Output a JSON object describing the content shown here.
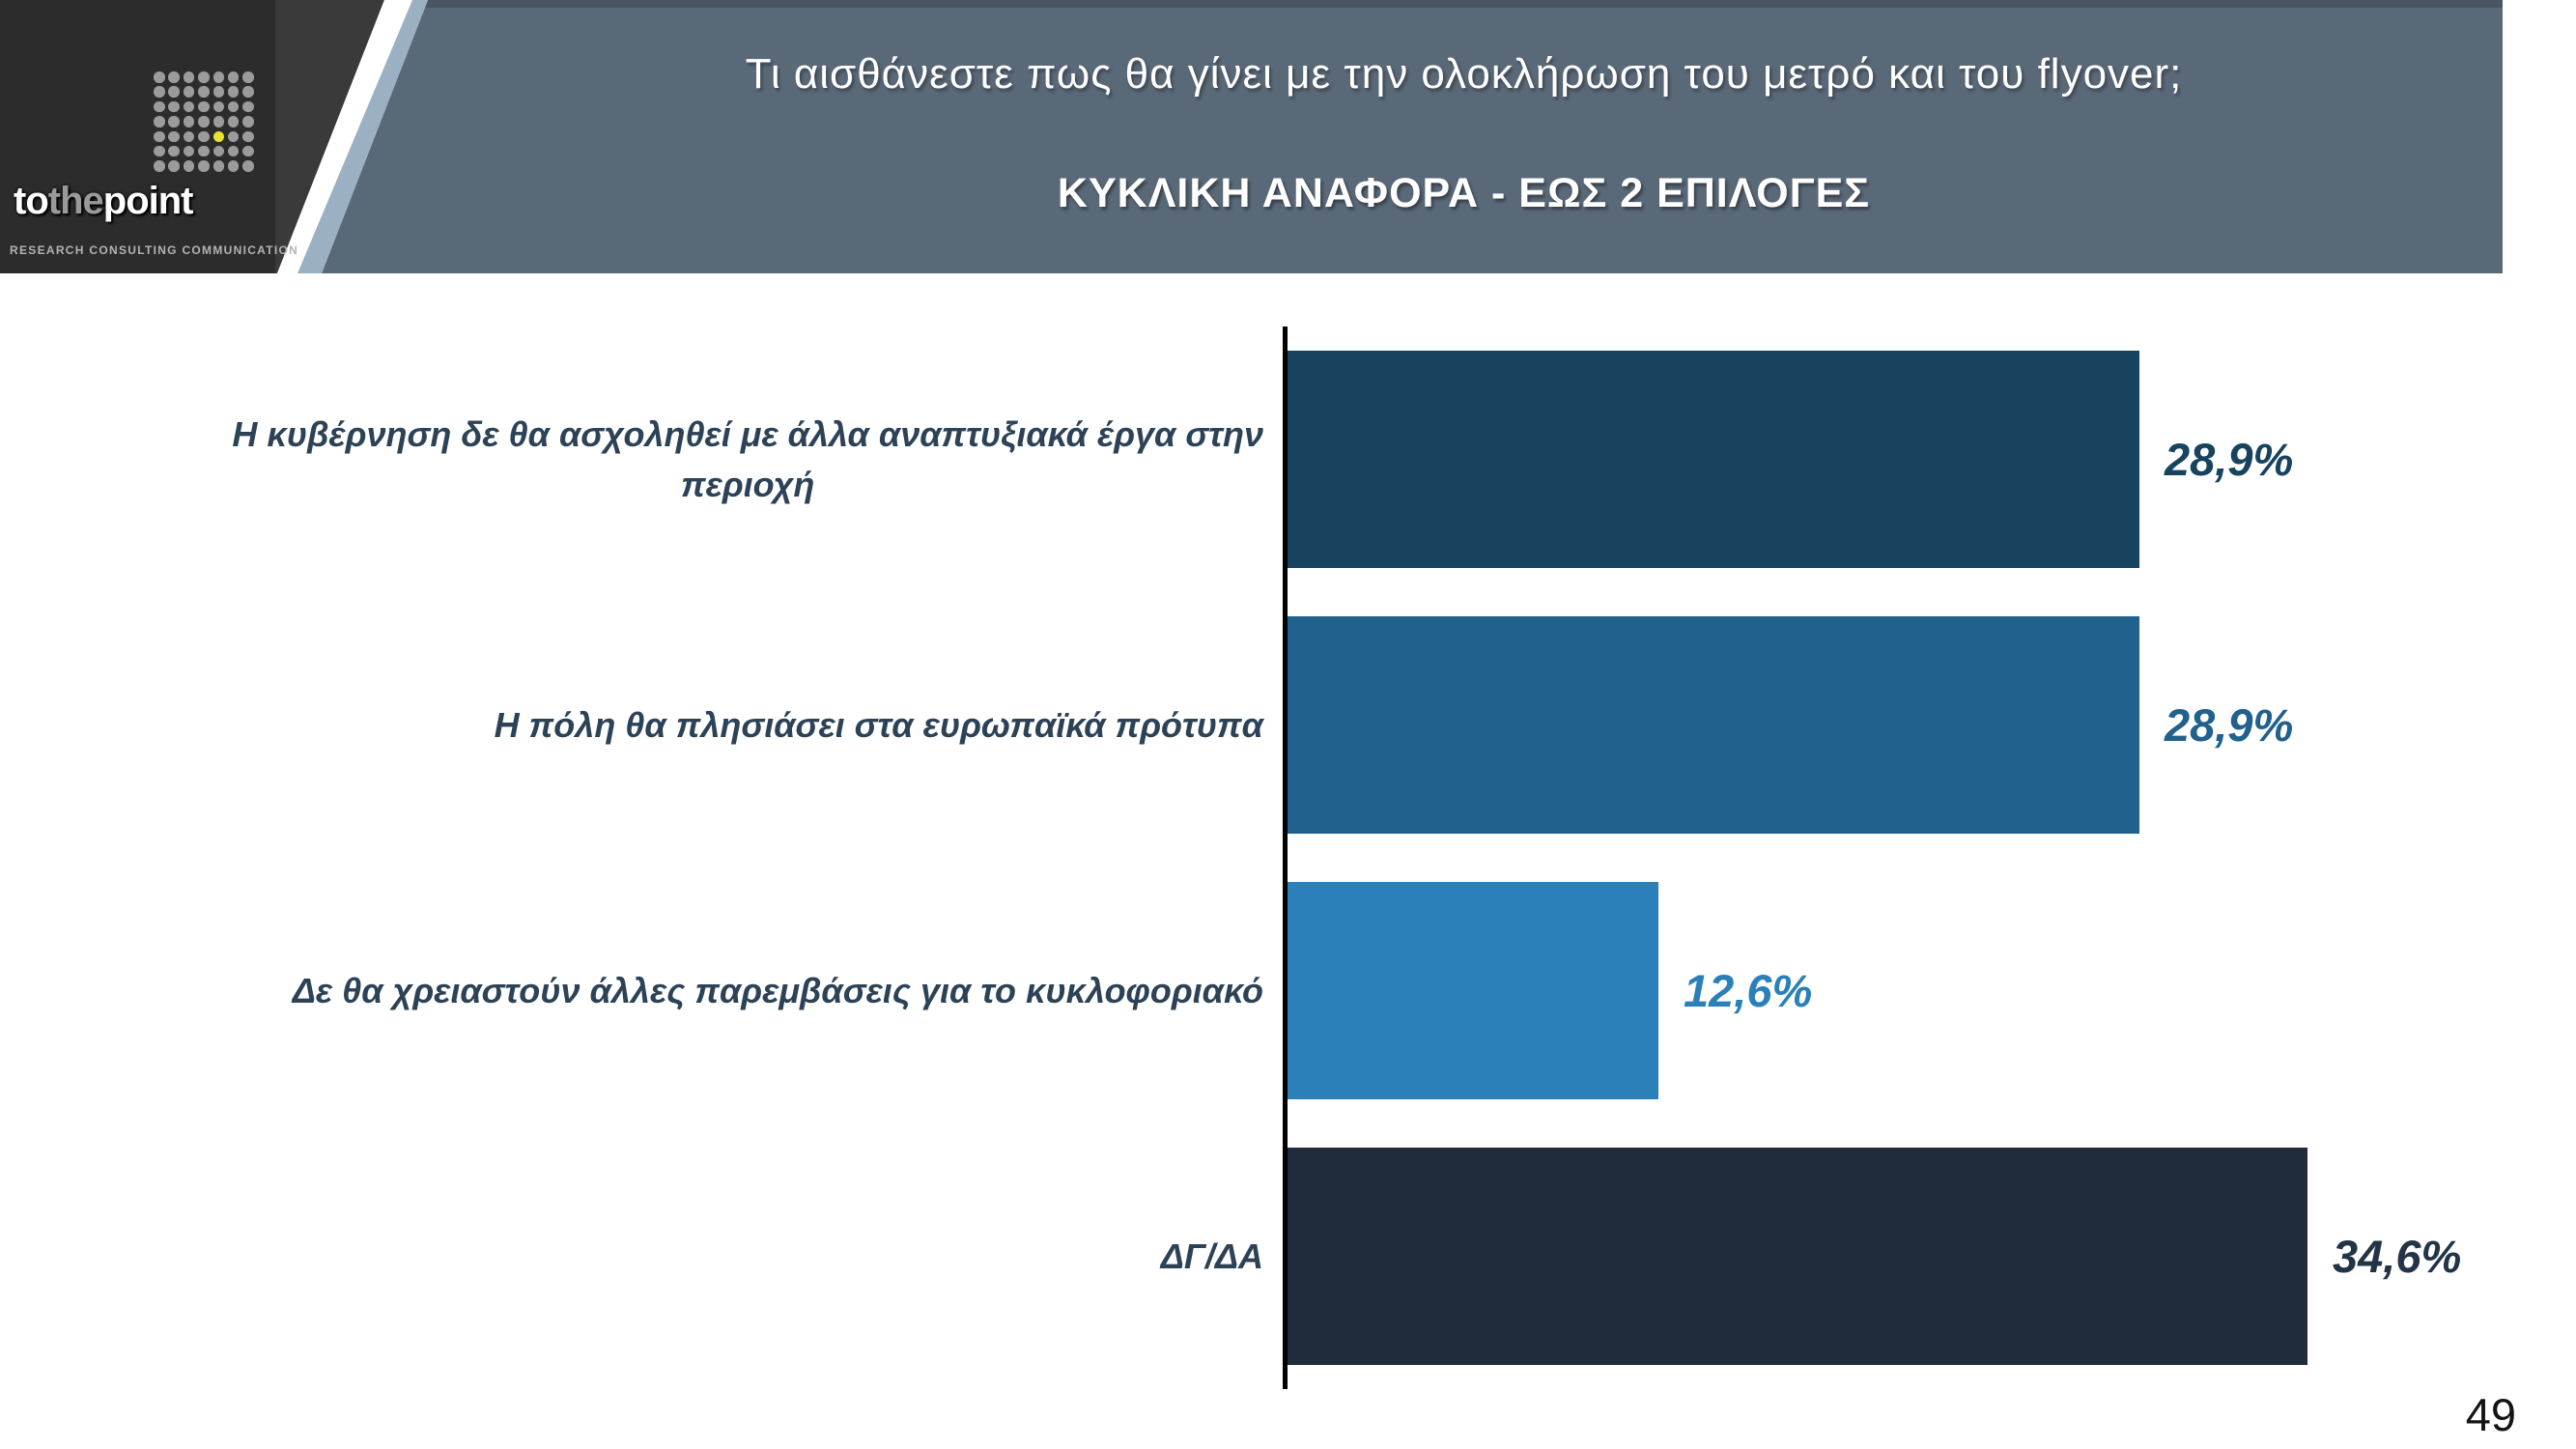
{
  "slide": {
    "page_number": "49"
  },
  "logo": {
    "word_to": "to",
    "word_the": "the",
    "word_point": "point",
    "tagline": "RESEARCH  CONSULTING  COMMUNICATION",
    "grid": {
      "rows": 7,
      "cols": 7,
      "accent_row": 4,
      "accent_col": 4,
      "dot_color": "#9b9b9b",
      "accent_color": "#e8e430"
    }
  },
  "header": {
    "title": "Τι αισθάνεστε πως θα γίνει με την ολοκλήρωση του μετρό και του flyover;",
    "subtitle": "ΚΥΚΛΙΚΗ ΑΝΑΦΟΡΑ - ΕΩΣ 2 ΕΠΙΛΟΓΕΣ",
    "banner_color": "#5a6978",
    "stripe_light_color": "#9cb0c3"
  },
  "chart_data": {
    "type": "bar",
    "orientation": "horizontal",
    "title": "Τι αισθάνεστε πως θα γίνει με την ολοκλήρωση του μετρό και του flyover; — ΚΥΚΛΙΚΗ ΑΝΑΦΟΡΑ - ΕΩΣ 2 ΕΠΙΛΟΓΕΣ",
    "categories": [
      "Η κυβέρνηση δε θα ασχοληθεί με άλλα αναπτυξιακά έργα στην περιοχή",
      "Η πόλη θα πλησιάσει στα ευρωπαϊκά πρότυπα",
      "Δε θα χρειαστούν άλλες παρεμβάσεις για το κυκλοφοριακό",
      "ΔΓ/ΔΑ"
    ],
    "category_lines": [
      [
        "Η κυβέρνηση δε θα ασχοληθεί με άλλα αναπτυξιακά έργα στην",
        "περιοχή"
      ],
      [
        "Η πόλη θα πλησιάσει στα ευρωπαϊκά πρότυπα"
      ],
      [
        "Δε θα χρειαστούν άλλες παρεμβάσεις για το κυκλοφοριακό"
      ],
      [
        "ΔΓ/ΔΑ"
      ]
    ],
    "values": [
      28.9,
      28.9,
      12.6,
      34.6
    ],
    "value_labels": [
      "28,9%",
      "28,9%",
      "12,6%",
      "34,6%"
    ],
    "colors": [
      "#17435f",
      "#20618d",
      "#2b80ba",
      "#202c3b"
    ],
    "label_colors": [
      "#17435f",
      "#20618d",
      "#2b80ba",
      "#243447"
    ],
    "xlim": [
      0,
      41.3
    ],
    "grid": false,
    "legend": false,
    "axis_color": "#000000"
  }
}
